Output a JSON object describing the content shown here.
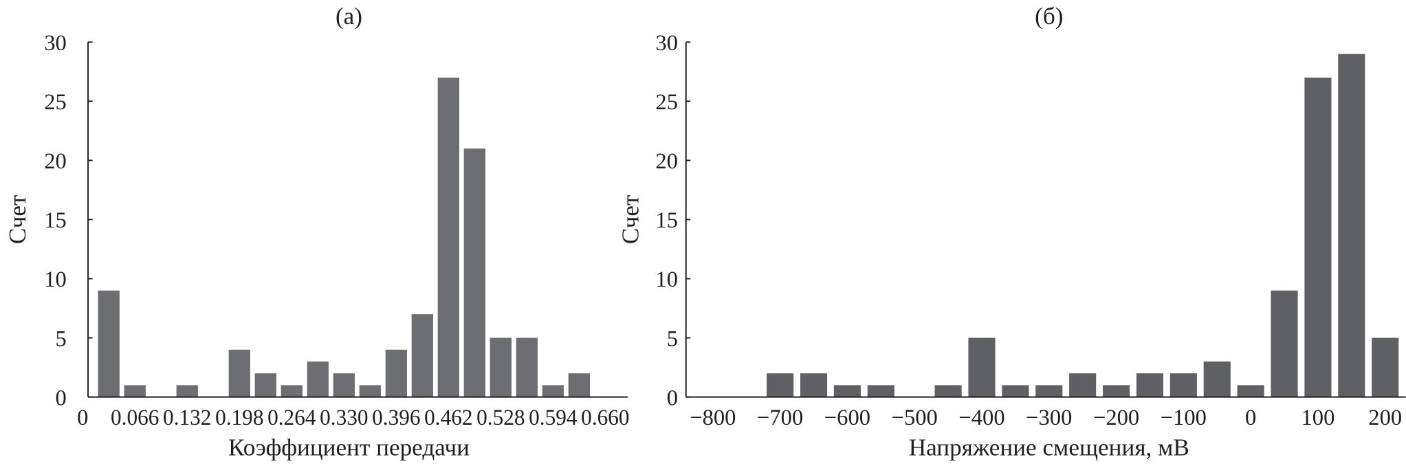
{
  "chart_data": [
    {
      "type": "bar",
      "title": "(a)",
      "xlabel": "Коэффициент передачи",
      "ylabel": "Счет",
      "x": [
        0.033,
        0.066,
        0.099,
        0.132,
        0.165,
        0.198,
        0.231,
        0.264,
        0.297,
        0.33,
        0.363,
        0.396,
        0.429,
        0.462,
        0.495,
        0.528,
        0.561,
        0.594,
        0.627
      ],
      "values": [
        9,
        1,
        0,
        1,
        0,
        4,
        2,
        1,
        3,
        2,
        1,
        4,
        7,
        27,
        21,
        5,
        5,
        1,
        2
      ],
      "xlim": [
        0,
        0.66
      ],
      "ylim": [
        0,
        30
      ],
      "xticks": [
        "0",
        "0.066",
        "0.132",
        "0.198",
        "0.264",
        "0.330",
        "0.396",
        "0.462",
        "0.528",
        "0.594",
        "0.660"
      ],
      "xtick_values": [
        0,
        0.066,
        0.132,
        0.198,
        0.264,
        0.33,
        0.396,
        0.462,
        0.528,
        0.594,
        0.66
      ],
      "yticks": [
        "0",
        "5",
        "10",
        "15",
        "20",
        "25",
        "30"
      ],
      "ytick_values": [
        0,
        5,
        10,
        15,
        20,
        25,
        30
      ],
      "bar_color": "#6d6e71",
      "grid": false
    },
    {
      "type": "bar",
      "title": "(б)",
      "xlabel": "Напряжение смещения, мВ",
      "ylabel": "Счет",
      "x": [
        -700,
        -650,
        -600,
        -550,
        -500,
        -450,
        -400,
        -350,
        -300,
        -250,
        -200,
        -150,
        -100,
        -50,
        0,
        50,
        100,
        150,
        200
      ],
      "values": [
        2,
        2,
        1,
        1,
        0,
        1,
        5,
        1,
        1,
        2,
        1,
        2,
        2,
        3,
        1,
        9,
        27,
        29,
        5
      ],
      "xlim": [
        -800,
        200
      ],
      "ylim": [
        0,
        30
      ],
      "xticks": [
        "−800",
        "−700",
        "−600",
        "−500",
        "−400",
        "−300",
        "−200",
        "−100",
        "0",
        "100",
        "200"
      ],
      "xtick_values": [
        -800,
        -700,
        -600,
        -500,
        -400,
        -300,
        -200,
        -100,
        0,
        100,
        200
      ],
      "yticks": [
        "0",
        "5",
        "10",
        "15",
        "20",
        "25",
        "30"
      ],
      "ytick_values": [
        0,
        5,
        10,
        15,
        20,
        25,
        30
      ],
      "bar_color": "#5f6064",
      "grid": false
    }
  ]
}
